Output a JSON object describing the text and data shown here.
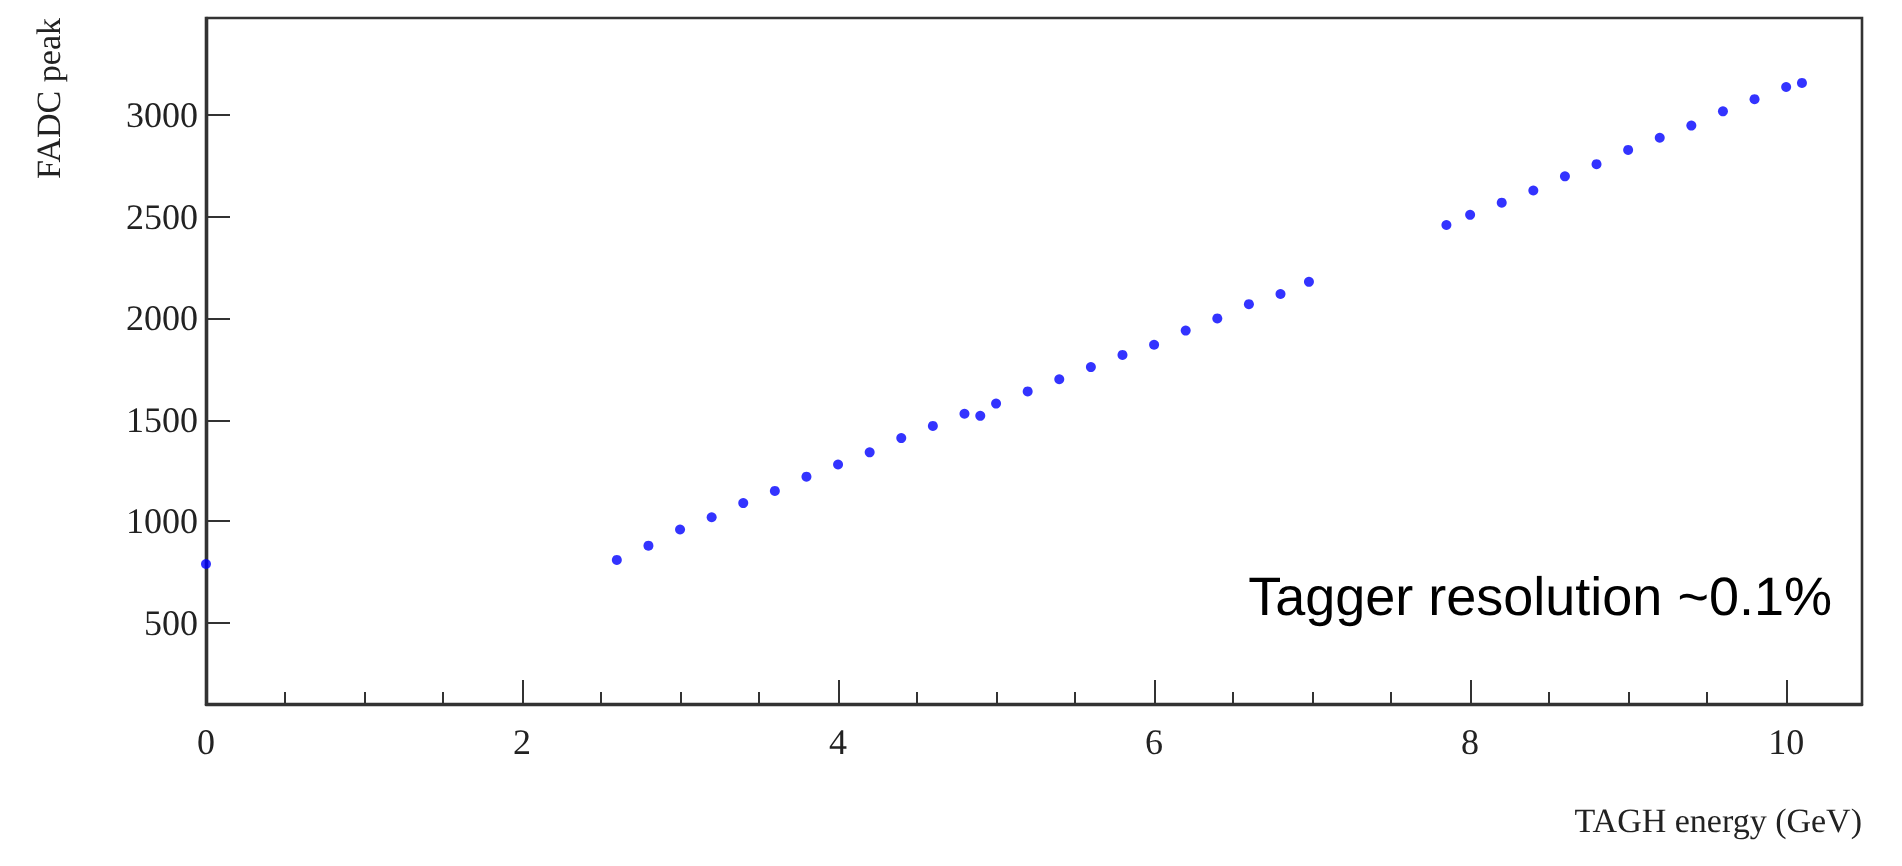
{
  "chart_data": {
    "type": "scatter",
    "xlabel": "TAGH energy (GeV)",
    "ylabel": "FADC peak",
    "annotations": [
      "Tagger resolution ~0.1%"
    ],
    "xlim": [
      0,
      10.48
    ],
    "xticks": [
      0,
      2,
      4,
      6,
      8,
      10
    ],
    "ylim": [
      100,
      3480
    ],
    "yticks": [
      500,
      1000,
      1500,
      2000,
      2500,
      3000
    ],
    "grid": false,
    "marker": "circle",
    "series": [
      {
        "color": "#0000ff",
        "x": [
          0,
          2.6,
          2.8,
          3.0,
          3.2,
          3.4,
          3.6,
          3.8,
          4.0,
          4.2,
          4.4,
          4.6,
          4.8,
          4.9,
          5.0,
          5.2,
          5.4,
          5.6,
          5.8,
          6.0,
          6.2,
          6.4,
          6.6,
          6.8,
          6.98,
          7.85,
          8.0,
          8.2,
          8.4,
          8.6,
          8.8,
          9.0,
          9.2,
          9.4,
          9.6,
          9.8,
          10.0,
          10.1
        ],
        "values": [
          790,
          810,
          880,
          960,
          1020,
          1090,
          1150,
          1220,
          1280,
          1340,
          1410,
          1470,
          1530,
          1520,
          1580,
          1640,
          1700,
          1760,
          1820,
          1870,
          1940,
          2000,
          2070,
          2120,
          2180,
          2460,
          2510,
          2570,
          2630,
          2700,
          2760,
          2830,
          2890,
          2950,
          3020,
          3080,
          3140,
          3160
        ]
      }
    ]
  }
}
